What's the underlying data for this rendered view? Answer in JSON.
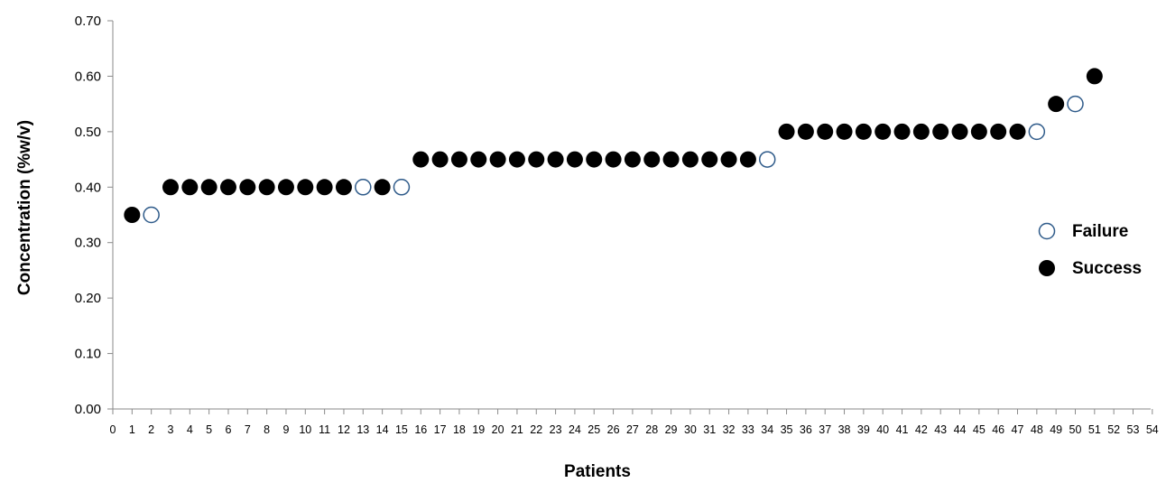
{
  "chart_data": {
    "type": "scatter",
    "xlabel": "Patients",
    "ylabel": "Concentration (%w/v)",
    "ylim": [
      0,
      0.7
    ],
    "yticks": [
      "0.00",
      "0.10",
      "0.20",
      "0.30",
      "0.40",
      "0.50",
      "0.60",
      "0.70"
    ],
    "xlim": [
      0,
      54
    ],
    "xticks": [
      "0",
      "1",
      "2",
      "3",
      "4",
      "5",
      "6",
      "7",
      "8",
      "9",
      "10",
      "11",
      "12",
      "13",
      "14",
      "15",
      "16",
      "17",
      "18",
      "19",
      "20",
      "21",
      "22",
      "23",
      "24",
      "25",
      "26",
      "27",
      "28",
      "29",
      "30",
      "31",
      "32",
      "33",
      "34",
      "35",
      "36",
      "37",
      "38",
      "39",
      "40",
      "41",
      "42",
      "43",
      "44",
      "45",
      "46",
      "47",
      "48",
      "49",
      "50",
      "51",
      "52",
      "53",
      "54"
    ],
    "legend_position": "right",
    "grid": false,
    "series": [
      {
        "name": "Failure",
        "marker": "hollow-circle",
        "color": "#2f5b8a",
        "points": [
          {
            "x": 2,
            "y": 0.35
          },
          {
            "x": 13,
            "y": 0.4
          },
          {
            "x": 15,
            "y": 0.4
          },
          {
            "x": 34,
            "y": 0.45
          },
          {
            "x": 48,
            "y": 0.5
          },
          {
            "x": 50,
            "y": 0.55
          }
        ]
      },
      {
        "name": "Success",
        "marker": "filled-circle",
        "color": "#000000",
        "points": [
          {
            "x": 1,
            "y": 0.35
          },
          {
            "x": 3,
            "y": 0.4
          },
          {
            "x": 4,
            "y": 0.4
          },
          {
            "x": 5,
            "y": 0.4
          },
          {
            "x": 6,
            "y": 0.4
          },
          {
            "x": 7,
            "y": 0.4
          },
          {
            "x": 8,
            "y": 0.4
          },
          {
            "x": 9,
            "y": 0.4
          },
          {
            "x": 10,
            "y": 0.4
          },
          {
            "x": 11,
            "y": 0.4
          },
          {
            "x": 12,
            "y": 0.4
          },
          {
            "x": 14,
            "y": 0.4
          },
          {
            "x": 16,
            "y": 0.45
          },
          {
            "x": 17,
            "y": 0.45
          },
          {
            "x": 18,
            "y": 0.45
          },
          {
            "x": 19,
            "y": 0.45
          },
          {
            "x": 20,
            "y": 0.45
          },
          {
            "x": 21,
            "y": 0.45
          },
          {
            "x": 22,
            "y": 0.45
          },
          {
            "x": 23,
            "y": 0.45
          },
          {
            "x": 24,
            "y": 0.45
          },
          {
            "x": 25,
            "y": 0.45
          },
          {
            "x": 26,
            "y": 0.45
          },
          {
            "x": 27,
            "y": 0.45
          },
          {
            "x": 28,
            "y": 0.45
          },
          {
            "x": 29,
            "y": 0.45
          },
          {
            "x": 30,
            "y": 0.45
          },
          {
            "x": 31,
            "y": 0.45
          },
          {
            "x": 32,
            "y": 0.45
          },
          {
            "x": 33,
            "y": 0.45
          },
          {
            "x": 35,
            "y": 0.5
          },
          {
            "x": 36,
            "y": 0.5
          },
          {
            "x": 37,
            "y": 0.5
          },
          {
            "x": 38,
            "y": 0.5
          },
          {
            "x": 39,
            "y": 0.5
          },
          {
            "x": 40,
            "y": 0.5
          },
          {
            "x": 41,
            "y": 0.5
          },
          {
            "x": 42,
            "y": 0.5
          },
          {
            "x": 43,
            "y": 0.5
          },
          {
            "x": 44,
            "y": 0.5
          },
          {
            "x": 45,
            "y": 0.5
          },
          {
            "x": 46,
            "y": 0.5
          },
          {
            "x": 47,
            "y": 0.5
          },
          {
            "x": 49,
            "y": 0.55
          },
          {
            "x": 51,
            "y": 0.6
          }
        ]
      }
    ]
  }
}
